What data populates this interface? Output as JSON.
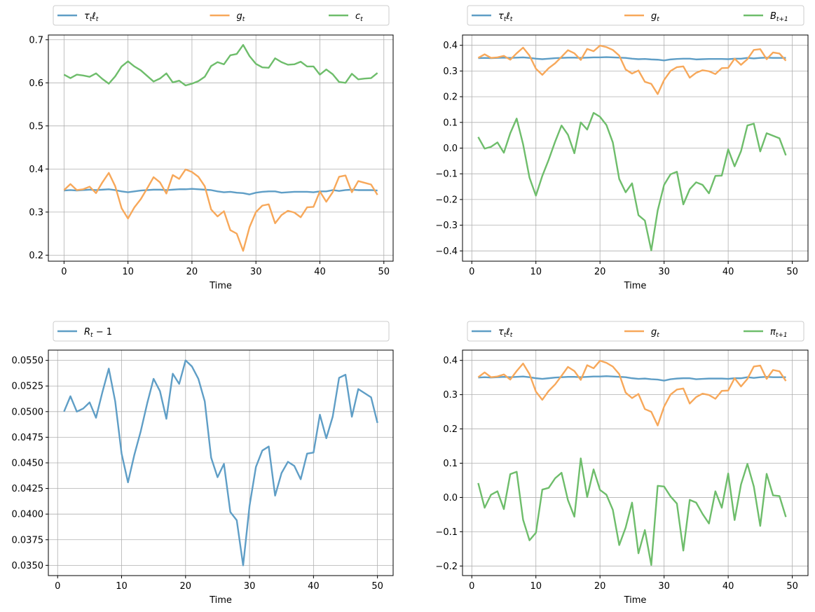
{
  "figure": {
    "colors": {
      "blue": "#5f9ec6",
      "orange": "#f7a85a",
      "green": "#6ebd6b",
      "grid": "#b0b0b0"
    }
  },
  "chart_data": [
    {
      "type": "line",
      "xlabel": "Time",
      "xlim": [
        -2.45,
        51.45
      ],
      "ylim": [
        0.186,
        0.711
      ],
      "xticks": [
        0,
        10,
        20,
        30,
        40,
        50
      ],
      "yticks": [
        0.2,
        0.3,
        0.4,
        0.5,
        0.6,
        0.7
      ],
      "ytick_labels": [
        "0.2",
        "0.3",
        "0.4",
        "0.5",
        "0.6",
        "0.7"
      ],
      "grid": true,
      "legend_placement": "above",
      "series": [
        {
          "name": "τtℓt",
          "label_main": "τ",
          "label_sub": "t",
          "label_main2": "ℓ",
          "label_sub2": "t",
          "color": "#5f9ec6",
          "x0": 0,
          "values": [
            0.35,
            0.351,
            0.35,
            0.351,
            0.352,
            0.351,
            0.352,
            0.353,
            0.351,
            0.348,
            0.346,
            0.348,
            0.35,
            0.351,
            0.352,
            0.352,
            0.351,
            0.352,
            0.353,
            0.353,
            0.354,
            0.353,
            0.352,
            0.351,
            0.348,
            0.346,
            0.347,
            0.345,
            0.344,
            0.341,
            0.345,
            0.347,
            0.348,
            0.348,
            0.345,
            0.346,
            0.347,
            0.347,
            0.347,
            0.346,
            0.348,
            0.348,
            0.351,
            0.349,
            0.351,
            0.352,
            0.351,
            0.351,
            0.351,
            0.35
          ]
        },
        {
          "name": "gt",
          "label_main": "g",
          "label_sub": "t",
          "color": "#f7a85a",
          "x0": 0,
          "values": [
            0.351,
            0.365,
            0.351,
            0.353,
            0.359,
            0.344,
            0.369,
            0.391,
            0.36,
            0.309,
            0.285,
            0.311,
            0.33,
            0.355,
            0.381,
            0.369,
            0.343,
            0.386,
            0.377,
            0.399,
            0.393,
            0.382,
            0.36,
            0.306,
            0.29,
            0.302,
            0.258,
            0.25,
            0.21,
            0.265,
            0.3,
            0.315,
            0.318,
            0.274,
            0.293,
            0.303,
            0.299,
            0.288,
            0.311,
            0.312,
            0.348,
            0.324,
            0.346,
            0.382,
            0.385,
            0.346,
            0.372,
            0.368,
            0.364,
            0.34
          ]
        },
        {
          "name": "ct",
          "label_main": "c",
          "label_sub": "t",
          "color": "#6ebd6b",
          "x0": 0,
          "values": [
            0.619,
            0.611,
            0.619,
            0.617,
            0.614,
            0.622,
            0.609,
            0.598,
            0.615,
            0.638,
            0.65,
            0.638,
            0.629,
            0.616,
            0.603,
            0.61,
            0.622,
            0.601,
            0.605,
            0.594,
            0.598,
            0.604,
            0.614,
            0.639,
            0.648,
            0.643,
            0.664,
            0.667,
            0.688,
            0.662,
            0.644,
            0.636,
            0.635,
            0.657,
            0.648,
            0.642,
            0.643,
            0.649,
            0.638,
            0.638,
            0.619,
            0.631,
            0.62,
            0.602,
            0.6,
            0.621,
            0.608,
            0.61,
            0.611,
            0.623
          ]
        }
      ]
    },
    {
      "type": "line",
      "xlabel": "Time",
      "xlim": [
        -1.45,
        52.45
      ],
      "ylim": [
        -0.44,
        0.44
      ],
      "xticks": [
        0,
        10,
        20,
        30,
        40,
        50
      ],
      "yticks": [
        -0.4,
        -0.3,
        -0.2,
        -0.1,
        0.0,
        0.1,
        0.2,
        0.3,
        0.4
      ],
      "ytick_labels": [
        "−0.4",
        "−0.3",
        "−0.2",
        "−0.1",
        "0.0",
        "0.1",
        "0.2",
        "0.3",
        "0.4"
      ],
      "grid": true,
      "legend_placement": "above",
      "series": [
        {
          "name": "τtℓt",
          "label_main": "τ",
          "label_sub": "t",
          "label_main2": "ℓ",
          "label_sub2": "t",
          "color": "#5f9ec6",
          "x0": 1,
          "values": [
            0.35,
            0.351,
            0.35,
            0.351,
            0.352,
            0.351,
            0.352,
            0.353,
            0.351,
            0.348,
            0.346,
            0.348,
            0.35,
            0.351,
            0.352,
            0.352,
            0.351,
            0.352,
            0.353,
            0.353,
            0.354,
            0.353,
            0.352,
            0.351,
            0.348,
            0.346,
            0.347,
            0.345,
            0.344,
            0.341,
            0.345,
            0.347,
            0.348,
            0.348,
            0.345,
            0.346,
            0.347,
            0.347,
            0.347,
            0.346,
            0.348,
            0.348,
            0.351,
            0.349,
            0.351,
            0.352,
            0.351,
            0.351,
            0.351
          ]
        },
        {
          "name": "gt",
          "label_main": "g",
          "label_sub": "t",
          "color": "#f7a85a",
          "x0": 1,
          "values": [
            0.351,
            0.365,
            0.351,
            0.353,
            0.359,
            0.344,
            0.369,
            0.391,
            0.36,
            0.309,
            0.285,
            0.311,
            0.33,
            0.355,
            0.381,
            0.369,
            0.343,
            0.386,
            0.377,
            0.399,
            0.393,
            0.382,
            0.36,
            0.306,
            0.29,
            0.302,
            0.258,
            0.25,
            0.21,
            0.265,
            0.3,
            0.315,
            0.318,
            0.274,
            0.293,
            0.303,
            0.299,
            0.288,
            0.311,
            0.312,
            0.348,
            0.324,
            0.346,
            0.382,
            0.385,
            0.346,
            0.372,
            0.368,
            0.34
          ]
        },
        {
          "name": "Bt+1",
          "label_main": "B",
          "label_sub": "t+1",
          "color": "#6ebd6b",
          "x0": 1,
          "values": [
            0.043,
            -0.002,
            0.005,
            0.022,
            -0.018,
            0.058,
            0.115,
            0.015,
            -0.115,
            -0.185,
            -0.108,
            -0.045,
            0.025,
            0.088,
            0.052,
            -0.02,
            0.1,
            0.072,
            0.137,
            0.122,
            0.09,
            0.022,
            -0.12,
            -0.172,
            -0.137,
            -0.261,
            -0.282,
            -0.398,
            -0.243,
            -0.143,
            -0.102,
            -0.092,
            -0.219,
            -0.16,
            -0.133,
            -0.143,
            -0.176,
            -0.108,
            -0.107,
            -0.005,
            -0.071,
            -0.012,
            0.088,
            0.095,
            -0.013,
            0.058,
            0.048,
            0.038,
            -0.028
          ]
        }
      ]
    },
    {
      "type": "line",
      "xlabel": "Time",
      "xlim": [
        -1.45,
        52.45
      ],
      "ylim": [
        0.034,
        0.056
      ],
      "xticks": [
        0,
        10,
        20,
        30,
        40,
        50
      ],
      "yticks": [
        0.035,
        0.0375,
        0.04,
        0.0425,
        0.045,
        0.0475,
        0.05,
        0.0525,
        0.055
      ],
      "ytick_labels": [
        "0.0350",
        "0.0375",
        "0.0400",
        "0.0425",
        "0.0450",
        "0.0475",
        "0.0500",
        "0.0525",
        "0.0550"
      ],
      "grid": true,
      "legend_placement": "above",
      "series": [
        {
          "name": "Rt − 1",
          "label_main": "R",
          "label_sub": "t",
          "label_tail": " − 1",
          "color": "#5f9ec6",
          "x0": 1,
          "values": [
            0.05,
            0.0515,
            0.05,
            0.0503,
            0.0509,
            0.0494,
            0.0519,
            0.0542,
            0.051,
            0.0459,
            0.0431,
            0.0458,
            0.0481,
            0.0508,
            0.0532,
            0.052,
            0.0493,
            0.0537,
            0.0527,
            0.055,
            0.0544,
            0.0532,
            0.051,
            0.0455,
            0.0436,
            0.0449,
            0.0402,
            0.0394,
            0.035,
            0.0408,
            0.0446,
            0.0462,
            0.0466,
            0.0418,
            0.044,
            0.0451,
            0.0447,
            0.0434,
            0.0459,
            0.046,
            0.0497,
            0.0474,
            0.0495,
            0.0533,
            0.0536,
            0.0495,
            0.0522,
            0.0518,
            0.0514,
            0.0489
          ]
        }
      ]
    },
    {
      "type": "line",
      "xlabel": "Time",
      "xlim": [
        -1.45,
        52.45
      ],
      "ylim": [
        -0.228,
        0.43
      ],
      "xticks": [
        0,
        10,
        20,
        30,
        40,
        50
      ],
      "yticks": [
        -0.2,
        -0.1,
        0.0,
        0.1,
        0.2,
        0.3,
        0.4
      ],
      "ytick_labels": [
        "−0.2",
        "−0.1",
        "0.0",
        "0.1",
        "0.2",
        "0.3",
        "0.4"
      ],
      "grid": true,
      "legend_placement": "above",
      "series": [
        {
          "name": "τtℓt",
          "label_main": "τ",
          "label_sub": "t",
          "label_main2": "ℓ",
          "label_sub2": "t",
          "color": "#5f9ec6",
          "x0": 1,
          "values": [
            0.35,
            0.351,
            0.35,
            0.351,
            0.352,
            0.351,
            0.352,
            0.353,
            0.351,
            0.348,
            0.346,
            0.348,
            0.35,
            0.351,
            0.352,
            0.352,
            0.351,
            0.352,
            0.353,
            0.353,
            0.354,
            0.353,
            0.352,
            0.351,
            0.348,
            0.346,
            0.347,
            0.345,
            0.344,
            0.341,
            0.345,
            0.347,
            0.348,
            0.348,
            0.345,
            0.346,
            0.347,
            0.347,
            0.347,
            0.346,
            0.348,
            0.348,
            0.351,
            0.349,
            0.351,
            0.352,
            0.351,
            0.351,
            0.351
          ]
        },
        {
          "name": "gt",
          "label_main": "g",
          "label_sub": "t",
          "color": "#f7a85a",
          "x0": 1,
          "values": [
            0.351,
            0.365,
            0.351,
            0.353,
            0.359,
            0.344,
            0.369,
            0.391,
            0.36,
            0.309,
            0.285,
            0.311,
            0.33,
            0.355,
            0.381,
            0.369,
            0.343,
            0.386,
            0.377,
            0.399,
            0.393,
            0.382,
            0.36,
            0.306,
            0.29,
            0.302,
            0.258,
            0.25,
            0.21,
            0.265,
            0.3,
            0.315,
            0.318,
            0.274,
            0.293,
            0.303,
            0.299,
            0.288,
            0.311,
            0.312,
            0.348,
            0.324,
            0.346,
            0.382,
            0.385,
            0.346,
            0.372,
            0.368,
            0.34
          ]
        },
        {
          "name": "πt+1",
          "label_main": "π",
          "label_sub": "t+1",
          "color": "#6ebd6b",
          "x0": 1,
          "values": [
            0.042,
            -0.03,
            0.008,
            0.018,
            -0.034,
            0.068,
            0.075,
            -0.065,
            -0.125,
            -0.103,
            0.023,
            0.028,
            0.056,
            0.072,
            -0.008,
            -0.056,
            0.114,
            0.001,
            0.082,
            0.022,
            0.008,
            -0.036,
            -0.139,
            -0.088,
            -0.015,
            -0.163,
            -0.095,
            -0.197,
            0.034,
            0.032,
            0.003,
            -0.018,
            -0.155,
            -0.007,
            -0.015,
            -0.048,
            -0.076,
            0.018,
            -0.03,
            0.07,
            -0.066,
            0.038,
            0.098,
            0.032,
            -0.083,
            0.069,
            0.006,
            0.004,
            -0.057
          ]
        }
      ]
    }
  ]
}
